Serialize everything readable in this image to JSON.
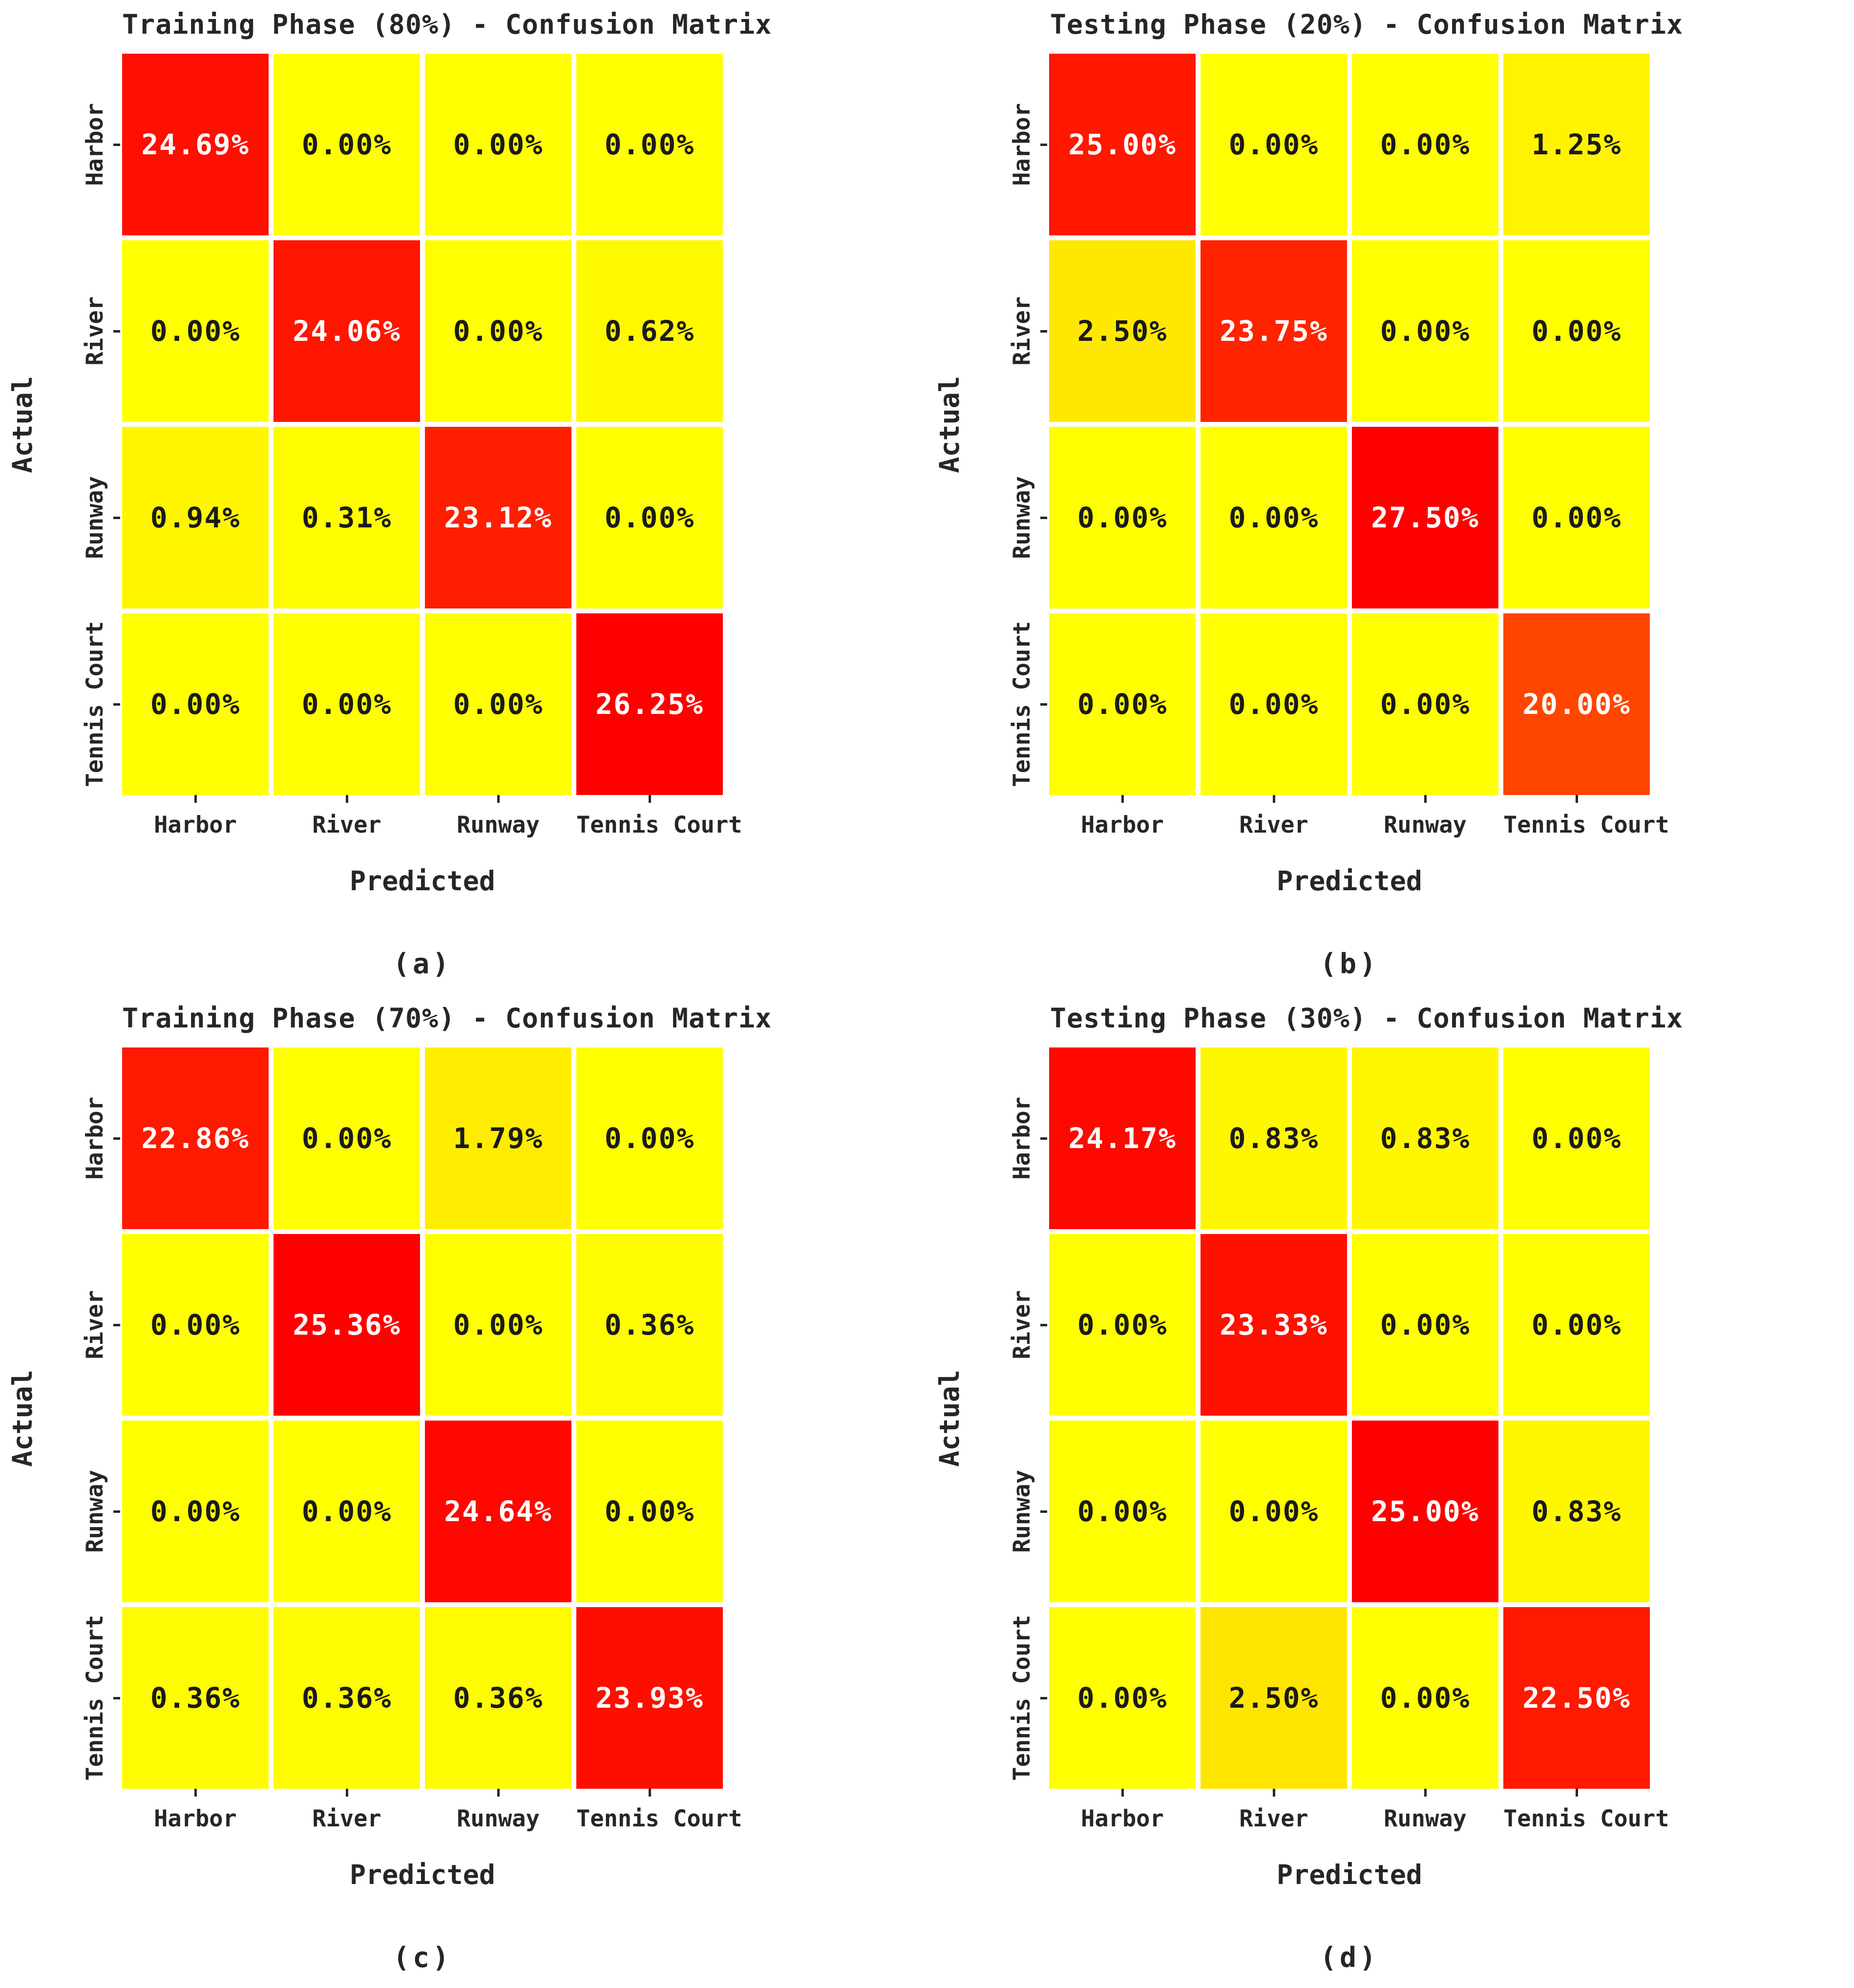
{
  "figure": {
    "colormap": "autumn_r",
    "min_color": "#ffff00",
    "max_color": "#ff0000",
    "cell_text_dark": "#1a1a1a",
    "cell_text_light": "#ffffff",
    "background": "#ffffff"
  },
  "chart_data": [
    {
      "type": "heatmap",
      "title": "Training Phase (80%) - Confusion Matrix",
      "caption": "(a)",
      "xlabel": "Predicted",
      "ylabel": "Actual",
      "x_tick_labels": [
        "Harbor",
        "River",
        "Runway",
        "Tennis Court"
      ],
      "y_tick_labels": [
        "Harbor",
        "River",
        "Runway",
        "Tennis Court"
      ],
      "values_percent": [
        [
          24.69,
          0.0,
          0.0,
          0.0
        ],
        [
          0.0,
          24.06,
          0.0,
          0.62
        ],
        [
          0.94,
          0.31,
          23.12,
          0.0
        ],
        [
          0.0,
          0.0,
          0.0,
          26.25
        ]
      ],
      "cell_labels": [
        [
          "24.69%",
          "0.00%",
          "0.00%",
          "0.00%"
        ],
        [
          "0.00%",
          "24.06%",
          "0.00%",
          "0.62%"
        ],
        [
          "0.94%",
          "0.31%",
          "23.12%",
          "0.00%"
        ],
        [
          "0.00%",
          "0.00%",
          "0.00%",
          "26.25%"
        ]
      ]
    },
    {
      "type": "heatmap",
      "title": "Testing Phase (20%) - Confusion Matrix",
      "caption": "(b)",
      "xlabel": "Predicted",
      "ylabel": "Actual",
      "x_tick_labels": [
        "Harbor",
        "River",
        "Runway",
        "Tennis Court"
      ],
      "y_tick_labels": [
        "Harbor",
        "River",
        "Runway",
        "Tennis Court"
      ],
      "values_percent": [
        [
          25.0,
          0.0,
          0.0,
          1.25
        ],
        [
          2.5,
          23.75,
          0.0,
          0.0
        ],
        [
          0.0,
          0.0,
          27.5,
          0.0
        ],
        [
          0.0,
          0.0,
          0.0,
          20.0
        ]
      ],
      "cell_labels": [
        [
          "25.00%",
          "0.00%",
          "0.00%",
          "1.25%"
        ],
        [
          "2.50%",
          "23.75%",
          "0.00%",
          "0.00%"
        ],
        [
          "0.00%",
          "0.00%",
          "27.50%",
          "0.00%"
        ],
        [
          "0.00%",
          "0.00%",
          "0.00%",
          "20.00%"
        ]
      ]
    },
    {
      "type": "heatmap",
      "title": "Training Phase (70%) - Confusion Matrix",
      "caption": "(c)",
      "xlabel": "Predicted",
      "ylabel": "Actual",
      "x_tick_labels": [
        "Harbor",
        "River",
        "Runway",
        "Tennis Court"
      ],
      "y_tick_labels": [
        "Harbor",
        "River",
        "Runway",
        "Tennis Court"
      ],
      "values_percent": [
        [
          22.86,
          0.0,
          1.79,
          0.0
        ],
        [
          0.0,
          25.36,
          0.0,
          0.36
        ],
        [
          0.0,
          0.0,
          24.64,
          0.0
        ],
        [
          0.36,
          0.36,
          0.36,
          23.93
        ]
      ],
      "cell_labels": [
        [
          "22.86%",
          "0.00%",
          "1.79%",
          "0.00%"
        ],
        [
          "0.00%",
          "25.36%",
          "0.00%",
          "0.36%"
        ],
        [
          "0.00%",
          "0.00%",
          "24.64%",
          "0.00%"
        ],
        [
          "0.36%",
          "0.36%",
          "0.36%",
          "23.93%"
        ]
      ]
    },
    {
      "type": "heatmap",
      "title": "Testing Phase (30%) - Confusion Matrix",
      "caption": "(d)",
      "xlabel": "Predicted",
      "ylabel": "Actual",
      "x_tick_labels": [
        "Harbor",
        "River",
        "Runway",
        "Tennis Court"
      ],
      "y_tick_labels": [
        "Harbor",
        "River",
        "Runway",
        "Tennis Court"
      ],
      "values_percent": [
        [
          24.17,
          0.83,
          0.83,
          0.0
        ],
        [
          0.0,
          23.33,
          0.0,
          0.0
        ],
        [
          0.0,
          0.0,
          25.0,
          0.83
        ],
        [
          0.0,
          2.5,
          0.0,
          22.5
        ]
      ],
      "cell_labels": [
        [
          "24.17%",
          "0.83%",
          "0.83%",
          "0.00%"
        ],
        [
          "0.00%",
          "23.33%",
          "0.00%",
          "0.00%"
        ],
        [
          "0.00%",
          "0.00%",
          "25.00%",
          "0.83%"
        ],
        [
          "0.00%",
          "2.50%",
          "0.00%",
          "22.50%"
        ]
      ]
    }
  ]
}
